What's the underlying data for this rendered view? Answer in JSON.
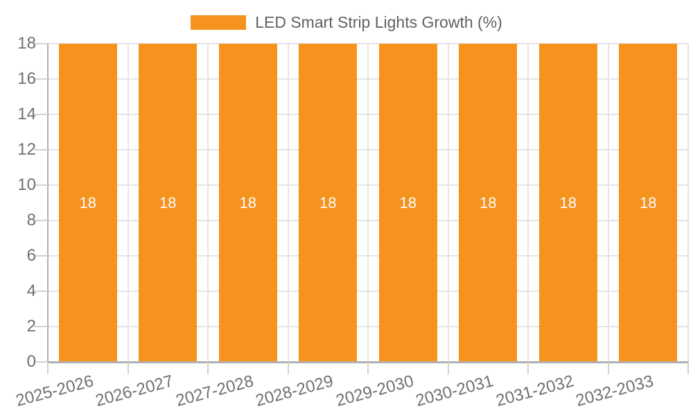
{
  "chart_data": {
    "type": "bar",
    "title": "",
    "legend": {
      "label": "LED Smart Strip Lights Growth (%)",
      "position": "top"
    },
    "categories": [
      "2025-2026",
      "2026-2027",
      "2027-2028",
      "2028-2029",
      "2029-2030",
      "2030-2031",
      "2031-2032",
      "2032-2033"
    ],
    "series": [
      {
        "name": "LED Smart Strip Lights Growth (%)",
        "values": [
          18,
          18,
          18,
          18,
          18,
          18,
          18,
          18
        ]
      }
    ],
    "bar_value_labels": [
      "18",
      "18",
      "18",
      "18",
      "18",
      "18",
      "18",
      "18"
    ],
    "xlabel": "",
    "ylabel": "",
    "ylim": [
      0,
      18
    ],
    "yticks": [
      0,
      2,
      4,
      6,
      8,
      10,
      12,
      14,
      16,
      18
    ],
    "grid": true,
    "x_label_rotation_deg": -15,
    "colors": {
      "bar": "#F6921E",
      "bar_label": "#FFFFFF",
      "grid_line": "#E4E4E4",
      "tick_mark": "#D2D2D2",
      "axis_line": "#B0B0B0",
      "tick_label": "#707070",
      "legend_text": "#616161",
      "background": "#FFFFFF"
    }
  }
}
